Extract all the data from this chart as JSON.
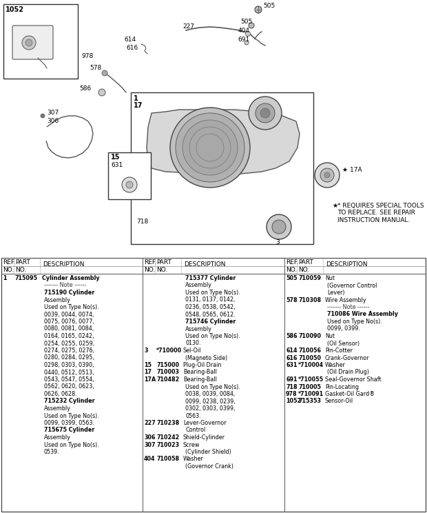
{
  "bg_color": "#ffffff",
  "special_note": "* REQUIRES SPECIAL TOOLS\nTO REPLACE. SEE REPAIR\nINSTRUCTION MANUAL.",
  "col1_entries": [
    {
      "ref": "1",
      "part": "715095",
      "desc": "Cylinder Assembly",
      "bold_desc": true,
      "indent": false
    },
    {
      "ref": "",
      "part": "",
      "desc": "------- Note ------",
      "bold_desc": false,
      "indent": true
    },
    {
      "ref": "",
      "part": "",
      "desc": "715190 Cylinder",
      "bold_desc": true,
      "indent": true
    },
    {
      "ref": "",
      "part": "",
      "desc": "Assembly",
      "bold_desc": false,
      "indent": true
    },
    {
      "ref": "",
      "part": "",
      "desc": "Used on Type No(s).",
      "bold_desc": false,
      "indent": true
    },
    {
      "ref": "",
      "part": "",
      "desc": "0039, 0044, 0074,",
      "bold_desc": false,
      "indent": true
    },
    {
      "ref": "",
      "part": "",
      "desc": "0075, 0076, 0077,",
      "bold_desc": false,
      "indent": true
    },
    {
      "ref": "",
      "part": "",
      "desc": "0080, 0081, 0084,",
      "bold_desc": false,
      "indent": true
    },
    {
      "ref": "",
      "part": "",
      "desc": "0164, 0165, 0242,",
      "bold_desc": false,
      "indent": true
    },
    {
      "ref": "",
      "part": "",
      "desc": "0254, 0255, 0259,",
      "bold_desc": false,
      "indent": true
    },
    {
      "ref": "",
      "part": "",
      "desc": "0274, 0275, 0276,",
      "bold_desc": false,
      "indent": true
    },
    {
      "ref": "",
      "part": "",
      "desc": "0280, 0284, 0295,",
      "bold_desc": false,
      "indent": true
    },
    {
      "ref": "",
      "part": "",
      "desc": "0298, 0303, 0390,",
      "bold_desc": false,
      "indent": true
    },
    {
      "ref": "",
      "part": "",
      "desc": "0440, 0512, 0513,",
      "bold_desc": false,
      "indent": true
    },
    {
      "ref": "",
      "part": "",
      "desc": "0543, 0547, 0554,",
      "bold_desc": false,
      "indent": true
    },
    {
      "ref": "",
      "part": "",
      "desc": "0562, 0620, 0623,",
      "bold_desc": false,
      "indent": true
    },
    {
      "ref": "",
      "part": "",
      "desc": "0626, 0628.",
      "bold_desc": false,
      "indent": true
    },
    {
      "ref": "",
      "part": "",
      "desc": "715232 Cylinder",
      "bold_desc": true,
      "indent": true
    },
    {
      "ref": "",
      "part": "",
      "desc": "Assembly",
      "bold_desc": false,
      "indent": true
    },
    {
      "ref": "",
      "part": "",
      "desc": "Used on Type No(s).",
      "bold_desc": false,
      "indent": true
    },
    {
      "ref": "",
      "part": "",
      "desc": "0099, 0399, 0563.",
      "bold_desc": false,
      "indent": true
    },
    {
      "ref": "",
      "part": "",
      "desc": "715675 Cylinder",
      "bold_desc": true,
      "indent": true
    },
    {
      "ref": "",
      "part": "",
      "desc": "Assembly",
      "bold_desc": false,
      "indent": true
    },
    {
      "ref": "",
      "part": "",
      "desc": "Used on Type No(s).",
      "bold_desc": false,
      "indent": true
    },
    {
      "ref": "",
      "part": "",
      "desc": "0539.",
      "bold_desc": false,
      "indent": true
    }
  ],
  "col2_entries": [
    {
      "ref": "",
      "part": "",
      "desc": "715377 Cylinder",
      "bold_desc": true,
      "indent": true
    },
    {
      "ref": "",
      "part": "",
      "desc": "Assembly",
      "bold_desc": false,
      "indent": true
    },
    {
      "ref": "",
      "part": "",
      "desc": "Used on Type No(s).",
      "bold_desc": false,
      "indent": true
    },
    {
      "ref": "",
      "part": "",
      "desc": "0131, 0137, 0142,",
      "bold_desc": false,
      "indent": true
    },
    {
      "ref": "",
      "part": "",
      "desc": "0236, 0538, 0542,",
      "bold_desc": false,
      "indent": true
    },
    {
      "ref": "",
      "part": "",
      "desc": "0548, 0565, 0612.",
      "bold_desc": false,
      "indent": true
    },
    {
      "ref": "",
      "part": "",
      "desc": "715746 Cylinder",
      "bold_desc": true,
      "indent": true
    },
    {
      "ref": "",
      "part": "",
      "desc": "Assembly",
      "bold_desc": false,
      "indent": true
    },
    {
      "ref": "",
      "part": "",
      "desc": "Used on Type No(s).",
      "bold_desc": false,
      "indent": true
    },
    {
      "ref": "",
      "part": "",
      "desc": "0130.",
      "bold_desc": false,
      "indent": true
    },
    {
      "ref": "3",
      "part": "*710000",
      "desc": "Sel-Oil",
      "bold_desc": false,
      "indent": false
    },
    {
      "ref": "",
      "part": "",
      "desc": "(Magneto Side)",
      "bold_desc": false,
      "indent": true
    },
    {
      "ref": "15",
      "part": "715000",
      "desc": "Plug-Oil Drain",
      "bold_desc": false,
      "indent": false
    },
    {
      "ref": "17",
      "part": "710003",
      "desc": "Bearing-Ball",
      "bold_desc": false,
      "indent": false
    },
    {
      "ref": "17A",
      "part": "710482",
      "desc": "Bearing-Ball",
      "bold_desc": false,
      "indent": false
    },
    {
      "ref": "",
      "part": "",
      "desc": "Used on Type No(s).",
      "bold_desc": false,
      "indent": true
    },
    {
      "ref": "",
      "part": "",
      "desc": "0038, 0039, 0084,",
      "bold_desc": false,
      "indent": true
    },
    {
      "ref": "",
      "part": "",
      "desc": "0099, 0238, 0239,",
      "bold_desc": false,
      "indent": true
    },
    {
      "ref": "",
      "part": "",
      "desc": "0302, 0303, 0399,",
      "bold_desc": false,
      "indent": true
    },
    {
      "ref": "",
      "part": "",
      "desc": "0563.",
      "bold_desc": false,
      "indent": true
    },
    {
      "ref": "227",
      "part": "710238",
      "desc": "Lever-Governor",
      "bold_desc": false,
      "indent": false
    },
    {
      "ref": "",
      "part": "",
      "desc": "Control",
      "bold_desc": false,
      "indent": true
    },
    {
      "ref": "306",
      "part": "710242",
      "desc": "Shield-Cylinder",
      "bold_desc": false,
      "indent": false
    },
    {
      "ref": "307",
      "part": "710023",
      "desc": "Screw",
      "bold_desc": false,
      "indent": false
    },
    {
      "ref": "",
      "part": "",
      "desc": "(Cylinder Shield)",
      "bold_desc": false,
      "indent": true
    },
    {
      "ref": "404",
      "part": "710058",
      "desc": "Washer",
      "bold_desc": false,
      "indent": false
    },
    {
      "ref": "",
      "part": "",
      "desc": "(Governor Crank)",
      "bold_desc": false,
      "indent": true
    }
  ],
  "col3_entries": [
    {
      "ref": "505",
      "part": "710059",
      "desc": "Nut",
      "bold_desc": false,
      "indent": false
    },
    {
      "ref": "",
      "part": "",
      "desc": "(Governor Control",
      "bold_desc": false,
      "indent": true
    },
    {
      "ref": "",
      "part": "",
      "desc": "Lever)",
      "bold_desc": false,
      "indent": true
    },
    {
      "ref": "578",
      "part": "710308",
      "desc": "Wire Assembly",
      "bold_desc": false,
      "indent": false
    },
    {
      "ref": "",
      "part": "",
      "desc": "------- Note ------",
      "bold_desc": false,
      "indent": true
    },
    {
      "ref": "",
      "part": "",
      "desc": "710086 Wire Assembly",
      "bold_desc": true,
      "indent": true
    },
    {
      "ref": "",
      "part": "",
      "desc": "Used on Type No(s).",
      "bold_desc": false,
      "indent": true
    },
    {
      "ref": "",
      "part": "",
      "desc": "0099, 0399.",
      "bold_desc": false,
      "indent": true
    },
    {
      "ref": "586",
      "part": "710090",
      "desc": "Nut",
      "bold_desc": false,
      "indent": false
    },
    {
      "ref": "",
      "part": "",
      "desc": "(Oil Sensor)",
      "bold_desc": false,
      "indent": true
    },
    {
      "ref": "614",
      "part": "710056",
      "desc": "Pin-Cotter",
      "bold_desc": false,
      "indent": false
    },
    {
      "ref": "616",
      "part": "710050",
      "desc": "Crank-Governor",
      "bold_desc": false,
      "indent": false
    },
    {
      "ref": "631",
      "part": "*710004",
      "desc": "Washer",
      "bold_desc": false,
      "indent": false
    },
    {
      "ref": "",
      "part": "",
      "desc": "(Oil Drain Plug)",
      "bold_desc": false,
      "indent": true
    },
    {
      "ref": "691",
      "part": "*710055",
      "desc": "Seal-Governor Shaft",
      "bold_desc": false,
      "indent": false
    },
    {
      "ref": "718",
      "part": "710005",
      "desc": "Pin-Locating",
      "bold_desc": false,
      "indent": false
    },
    {
      "ref": "978",
      "part": "*710091",
      "desc": "Gasket-Oil Gard®",
      "bold_desc": false,
      "indent": false
    },
    {
      "ref": "1052",
      "part": "715353",
      "desc": "Sensor-Oil",
      "bold_desc": false,
      "indent": false
    }
  ]
}
